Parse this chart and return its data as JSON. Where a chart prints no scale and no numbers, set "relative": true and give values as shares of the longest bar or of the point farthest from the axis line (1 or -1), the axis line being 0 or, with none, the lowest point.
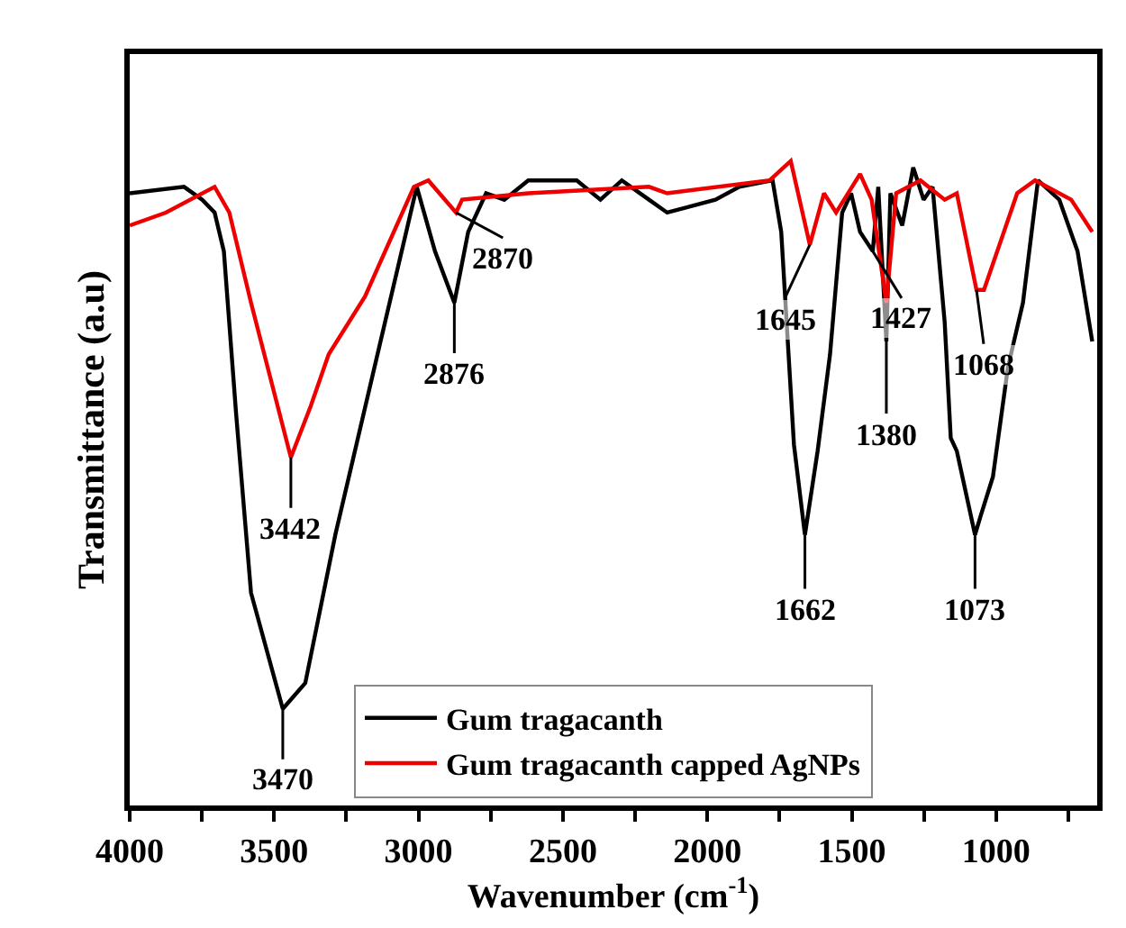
{
  "chart_data": {
    "type": "line",
    "xlabel": "Wavenumber (cm$^{-1}$)",
    "ylabel": "Transmittance (a.u)",
    "relative": true,
    "xlim": [
      4000,
      650
    ],
    "xticks": [
      4000,
      {
        "value": 3750,
        "label": null
      },
      3500,
      {
        "value": 3250,
        "label": null
      },
      3000,
      {
        "value": 2750,
        "label": null
      },
      2500,
      {
        "value": 2250,
        "label": null
      },
      2000,
      {
        "value": 1750,
        "label": null
      },
      1500,
      {
        "value": 1250,
        "label": null
      },
      1000,
      {
        "value": 750,
        "label": null
      }
    ],
    "tick_labels": "x",
    "legend": "bottom",
    "line_style": "solid",
    "marker": "none",
    "series": [
      {
        "name": "Gum tragacanth",
        "color": "#000000",
        "x": [
          4000,
          3812,
          3749,
          3706,
          3674,
          3632,
          3580,
          3470,
          3392,
          3288,
          3142,
          3006,
          2943,
          2876,
          2828,
          2766,
          2703,
          2620,
          2452,
          2370,
          2296,
          2202,
          2139,
          1972,
          1889,
          1774,
          1744,
          1700,
          1662,
          1618,
          1575,
          1533,
          1502,
          1471,
          1427,
          1408,
          1380,
          1366,
          1325,
          1287,
          1251,
          1220,
          1178,
          1157,
          1136,
          1073,
          1053,
          1011,
          959,
          907,
          855,
          781,
          718,
          667
        ],
        "values": [
          0.95,
          0.96,
          0.94,
          0.92,
          0.86,
          0.61,
          0.33,
          0.15,
          0.19,
          0.42,
          0.7,
          0.96,
          0.86,
          0.78,
          0.89,
          0.95,
          0.94,
          0.97,
          0.97,
          0.94,
          0.97,
          0.94,
          0.92,
          0.94,
          0.96,
          0.97,
          0.89,
          0.56,
          0.42,
          0.55,
          0.7,
          0.92,
          0.95,
          0.89,
          0.86,
          0.96,
          0.72,
          0.95,
          0.9,
          0.99,
          0.94,
          0.96,
          0.75,
          0.57,
          0.55,
          0.42,
          0.45,
          0.51,
          0.68,
          0.78,
          0.97,
          0.94,
          0.86,
          0.72
        ]
      },
      {
        "name": "Gum tragacanth capped AgNPs",
        "color": "#ee0000",
        "x": [
          4000,
          3875,
          3706,
          3655,
          3580,
          3442,
          3373,
          3311,
          3185,
          3016,
          2966,
          2870,
          2849,
          2620,
          2202,
          2139,
          1784,
          1711,
          1645,
          1596,
          1554,
          1471,
          1431,
          1380,
          1346,
          1262,
          1178,
          1136,
          1068,
          1042,
          927,
          865,
          740,
          667
        ],
        "values": [
          0.9,
          0.92,
          0.96,
          0.92,
          0.78,
          0.54,
          0.62,
          0.7,
          0.79,
          0.96,
          0.97,
          0.92,
          0.94,
          0.95,
          0.96,
          0.95,
          0.97,
          1.0,
          0.87,
          0.95,
          0.92,
          0.98,
          0.94,
          0.78,
          0.95,
          0.97,
          0.94,
          0.95,
          0.8,
          0.8,
          0.95,
          0.97,
          0.94,
          0.89
        ]
      }
    ],
    "annotations": [
      {
        "text": "3470",
        "x": 3470,
        "y": 0.15
      },
      {
        "text": "3442",
        "x": 3442,
        "y": 0.54
      },
      {
        "text": "2870",
        "x": 2870,
        "y": 0.92
      },
      {
        "text": "2876",
        "x": 2876,
        "y": 0.78
      },
      {
        "text": "1645",
        "x": 1645,
        "y": 0.87
      },
      {
        "text": "1427",
        "x": 1427,
        "y": 0.86
      },
      {
        "text": "1380",
        "x": 1380,
        "y": 0.72
      },
      {
        "text": "1662",
        "x": 1662,
        "y": 0.42
      },
      {
        "text": "1068",
        "x": 1068,
        "y": 0.8
      },
      {
        "text": "1073",
        "x": 1073,
        "y": 0.42
      }
    ]
  }
}
